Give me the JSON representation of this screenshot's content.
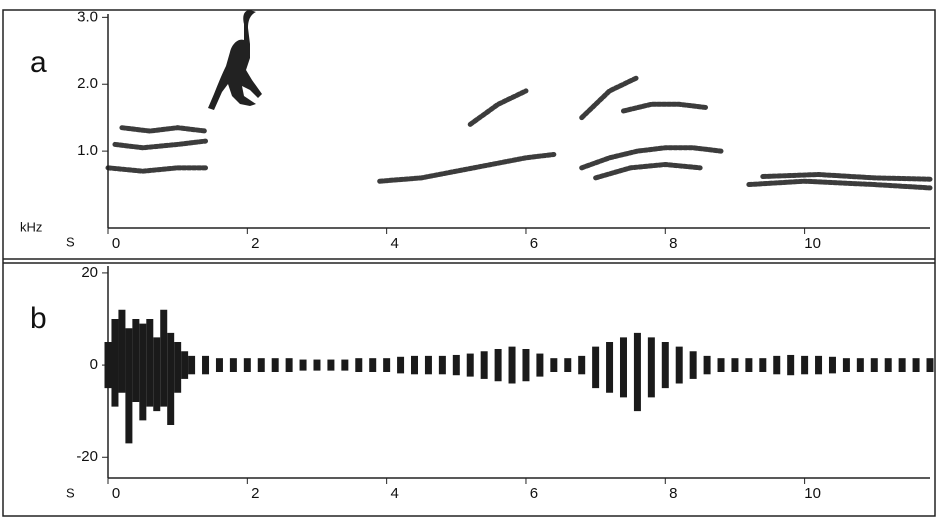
{
  "chart_data": [
    {
      "type": "spectrogram",
      "panel_label": "a",
      "ylabel": "kHz",
      "xlabel": "S",
      "xlim": [
        0,
        11.8
      ],
      "ylim": [
        0,
        3.05
      ],
      "xticks": [
        0,
        2,
        4,
        6,
        8,
        10
      ],
      "yticks": [
        {
          "value": 1,
          "label": "1.0"
        },
        {
          "value": 2,
          "label": "2.0"
        },
        {
          "value": 3,
          "label": "3.0"
        }
      ],
      "color": "#1a1a1a",
      "traces": [
        {
          "x": [
            0,
            0.5,
            1.0,
            1.4
          ],
          "y": [
            0.75,
            0.7,
            0.75,
            0.75
          ]
        },
        {
          "x": [
            0.1,
            0.5,
            1.0,
            1.4
          ],
          "y": [
            1.1,
            1.05,
            1.1,
            1.15
          ]
        },
        {
          "x": [
            0.2,
            0.6,
            1.0,
            1.4
          ],
          "y": [
            1.35,
            1.3,
            1.35,
            1.3
          ]
        },
        {
          "x": [
            3.9,
            4.5,
            5.0,
            5.5,
            6.0,
            6.4
          ],
          "y": [
            0.55,
            0.6,
            0.7,
            0.8,
            0.9,
            0.95
          ]
        },
        {
          "x": [
            6.8,
            7.2,
            7.6,
            8.0,
            8.4,
            8.8
          ],
          "y": [
            0.75,
            0.9,
            1.0,
            1.05,
            1.05,
            1.0
          ]
        },
        {
          "x": [
            7.0,
            7.5,
            8.0,
            8.5
          ],
          "y": [
            0.6,
            0.75,
            0.8,
            0.75
          ]
        },
        {
          "x": [
            7.4,
            7.8,
            8.2,
            8.6
          ],
          "y": [
            1.6,
            1.7,
            1.7,
            1.65
          ]
        },
        {
          "x": [
            9.2,
            10.0,
            11.0,
            11.8
          ],
          "y": [
            0.5,
            0.55,
            0.5,
            0.45
          ]
        },
        {
          "x": [
            9.4,
            10.2,
            11.0,
            11.8
          ],
          "y": [
            0.62,
            0.65,
            0.6,
            0.58
          ]
        },
        {
          "x": [
            5.2,
            5.6,
            6.0
          ],
          "y": [
            1.4,
            1.7,
            1.9
          ]
        },
        {
          "x": [
            6.8,
            7.2,
            7.6
          ],
          "y": [
            1.5,
            1.9,
            2.1
          ]
        }
      ]
    },
    {
      "type": "waveform",
      "panel_label": "b",
      "xlabel": "S",
      "xlim": [
        0,
        11.8
      ],
      "ylim": [
        -24.5,
        21.5
      ],
      "xticks": [
        0,
        2,
        4,
        6,
        8,
        10
      ],
      "yticks": [
        -20,
        0,
        20
      ],
      "color": "#1a1a1a",
      "x": [
        0,
        0.1,
        0.2,
        0.3,
        0.4,
        0.5,
        0.6,
        0.7,
        0.8,
        0.9,
        1.0,
        1.1,
        1.2,
        1.4,
        1.6,
        1.8,
        2.0,
        2.2,
        2.4,
        2.6,
        2.8,
        3.0,
        3.2,
        3.4,
        3.6,
        3.8,
        4.0,
        4.2,
        4.4,
        4.6,
        4.8,
        5.0,
        5.2,
        5.4,
        5.6,
        5.8,
        6.0,
        6.2,
        6.4,
        6.6,
        6.8,
        7.0,
        7.2,
        7.4,
        7.6,
        7.8,
        8.0,
        8.2,
        8.4,
        8.6,
        8.8,
        9.0,
        9.2,
        9.4,
        9.6,
        9.8,
        10.0,
        10.2,
        10.4,
        10.6,
        10.8,
        11.0,
        11.2,
        11.4,
        11.6,
        11.8
      ],
      "upper": [
        5,
        10,
        12,
        8,
        10,
        9,
        10,
        6,
        12,
        7,
        5,
        3,
        2,
        2,
        1.5,
        1.5,
        1.5,
        1.5,
        1.5,
        1.5,
        1.2,
        1.2,
        1.2,
        1.2,
        1.5,
        1.5,
        1.5,
        1.8,
        2,
        2,
        2,
        2.2,
        2.5,
        3,
        3.5,
        4,
        3.5,
        2.5,
        1.5,
        1.5,
        2,
        4,
        5,
        6,
        7,
        6,
        5,
        4,
        3,
        2,
        1.5,
        1.5,
        1.5,
        1.5,
        2,
        2.2,
        2,
        2,
        1.8,
        1.5,
        1.5,
        1.5,
        1.5,
        1.5,
        1.5,
        1.5
      ],
      "lower": [
        -5,
        -9,
        -6,
        -17,
        -8,
        -12,
        -9,
        -10,
        -9,
        -13,
        -6,
        -3,
        -2,
        -2,
        -1.5,
        -1.5,
        -1.5,
        -1.5,
        -1.5,
        -1.5,
        -1.2,
        -1.2,
        -1.2,
        -1.2,
        -1.5,
        -1.5,
        -1.5,
        -1.8,
        -2,
        -2,
        -2,
        -2.2,
        -2.5,
        -3,
        -3.5,
        -4,
        -3.5,
        -2.5,
        -1.5,
        -1.5,
        -2,
        -5,
        -6,
        -7,
        -10,
        -7,
        -5,
        -4,
        -3,
        -2,
        -1.5,
        -1.5,
        -1.5,
        -1.5,
        -2,
        -2.2,
        -2,
        -2,
        -1.8,
        -1.5,
        -1.5,
        -1.5,
        -1.5,
        -1.5,
        -1.5,
        -1.5
      ]
    }
  ]
}
